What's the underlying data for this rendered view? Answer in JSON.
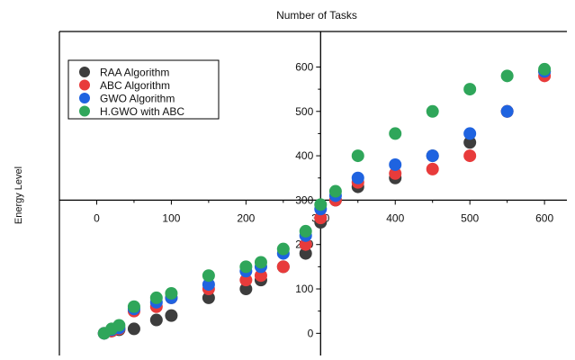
{
  "chart_data": {
    "type": "scatter",
    "title": "Number of Tasks",
    "xlabel": "Number of Tasks",
    "ylabel": "Energy Level",
    "xlim": [
      -50,
      630
    ],
    "ylim": [
      -50,
      680
    ],
    "x_ticks": [
      0,
      100,
      200,
      300,
      400,
      500,
      600
    ],
    "y_ticks": [
      0,
      100,
      200,
      300,
      400,
      500,
      600
    ],
    "grid": false,
    "axes_cross_at": [
      300,
      300
    ],
    "legend_position": "top-left",
    "series": [
      {
        "name": "RAA Algorithm",
        "color": "#3d3d3d",
        "points": [
          [
            10,
            0
          ],
          [
            20,
            5
          ],
          [
            30,
            8
          ],
          [
            50,
            10
          ],
          [
            80,
            30
          ],
          [
            100,
            40
          ],
          [
            150,
            80
          ],
          [
            200,
            100
          ],
          [
            220,
            120
          ],
          [
            250,
            150
          ],
          [
            280,
            180
          ],
          [
            300,
            250
          ],
          [
            320,
            300
          ],
          [
            350,
            330
          ],
          [
            400,
            350
          ],
          [
            450,
            400
          ],
          [
            500,
            430
          ],
          [
            550,
            500
          ],
          [
            600,
            590
          ]
        ]
      },
      {
        "name": "ABC Algorithm",
        "color": "#e83b3b",
        "points": [
          [
            10,
            0
          ],
          [
            20,
            5
          ],
          [
            30,
            10
          ],
          [
            50,
            50
          ],
          [
            80,
            60
          ],
          [
            100,
            80
          ],
          [
            150,
            100
          ],
          [
            200,
            120
          ],
          [
            220,
            130
          ],
          [
            250,
            150
          ],
          [
            280,
            200
          ],
          [
            300,
            260
          ],
          [
            320,
            300
          ],
          [
            350,
            340
          ],
          [
            400,
            360
          ],
          [
            450,
            370
          ],
          [
            500,
            400
          ],
          [
            550,
            500
          ],
          [
            600,
            580
          ]
        ]
      },
      {
        "name": "GWO Algorithm",
        "color": "#1f63e0",
        "points": [
          [
            10,
            0
          ],
          [
            20,
            8
          ],
          [
            30,
            12
          ],
          [
            50,
            55
          ],
          [
            80,
            70
          ],
          [
            100,
            80
          ],
          [
            150,
            110
          ],
          [
            200,
            140
          ],
          [
            220,
            150
          ],
          [
            250,
            180
          ],
          [
            280,
            220
          ],
          [
            300,
            280
          ],
          [
            320,
            310
          ],
          [
            350,
            350
          ],
          [
            400,
            380
          ],
          [
            450,
            400
          ],
          [
            500,
            450
          ],
          [
            550,
            500
          ],
          [
            600,
            590
          ]
        ]
      },
      {
        "name": "H.GWO with ABC",
        "color": "#2fa65a",
        "points": [
          [
            10,
            0
          ],
          [
            20,
            10
          ],
          [
            30,
            18
          ],
          [
            50,
            60
          ],
          [
            80,
            80
          ],
          [
            100,
            90
          ],
          [
            150,
            130
          ],
          [
            200,
            150
          ],
          [
            220,
            160
          ],
          [
            250,
            190
          ],
          [
            280,
            230
          ],
          [
            300,
            290
          ],
          [
            320,
            320
          ],
          [
            350,
            400
          ],
          [
            400,
            450
          ],
          [
            450,
            500
          ],
          [
            500,
            550
          ],
          [
            550,
            580
          ],
          [
            600,
            595
          ]
        ]
      }
    ]
  }
}
